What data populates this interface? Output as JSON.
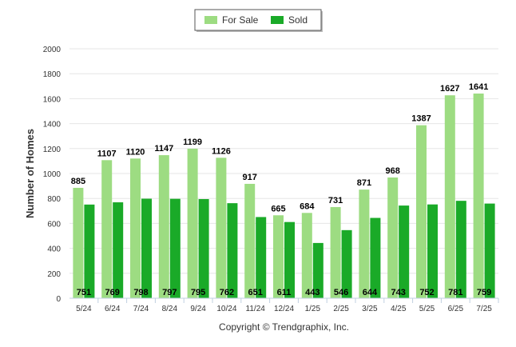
{
  "chart_data": {
    "type": "bar",
    "ylabel": "Number of Homes",
    "ylim": [
      0,
      2000
    ],
    "yticks": [
      0,
      200,
      400,
      600,
      800,
      1000,
      1200,
      1400,
      1600,
      1800,
      2000
    ],
    "grid": true,
    "legend_position": "top-center",
    "categories": [
      "5/24",
      "6/24",
      "7/24",
      "8/24",
      "9/24",
      "10/24",
      "11/24",
      "12/24",
      "1/25",
      "2/25",
      "3/25",
      "4/25",
      "5/25",
      "6/25",
      "7/25"
    ],
    "series": [
      {
        "name": "For Sale",
        "color": "#9ddc82",
        "label_position": "above",
        "values": [
          885,
          1107,
          1120,
          1147,
          1199,
          1126,
          917,
          665,
          684,
          731,
          871,
          968,
          1387,
          1627,
          1641
        ]
      },
      {
        "name": "Sold",
        "color": "#1aaa28",
        "label_position": "bottom",
        "values": [
          751,
          769,
          798,
          797,
          795,
          762,
          651,
          611,
          443,
          546,
          644,
          743,
          752,
          781,
          759
        ]
      }
    ],
    "footer": "Copyright © Trendgraphix, Inc."
  }
}
